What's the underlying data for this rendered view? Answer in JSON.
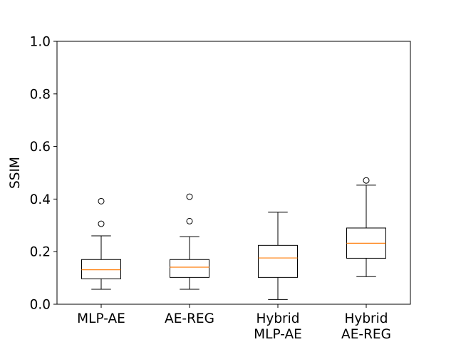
{
  "chart_data": {
    "type": "box",
    "title": "",
    "xlabel": "",
    "ylabel": "SSIM",
    "ylim": [
      0.0,
      1.0
    ],
    "yticks": [
      "0.0",
      "0.2",
      "0.4",
      "0.6",
      "0.8",
      "1.0"
    ],
    "grid": false,
    "categories": [
      [
        "MLP-AE"
      ],
      [
        "AE-REG"
      ],
      [
        "Hybrid",
        "MLP-AE"
      ],
      [
        "Hybrid",
        "AE-REG"
      ]
    ],
    "boxes": [
      {
        "whisker_low": 0.057,
        "q1": 0.097,
        "median": 0.131,
        "q3": 0.17,
        "whisker_high": 0.26,
        "outliers": [
          0.306,
          0.392
        ]
      },
      {
        "whisker_low": 0.057,
        "q1": 0.102,
        "median": 0.141,
        "q3": 0.17,
        "whisker_high": 0.257,
        "outliers": [
          0.316,
          0.409
        ]
      },
      {
        "whisker_low": 0.018,
        "q1": 0.102,
        "median": 0.176,
        "q3": 0.224,
        "whisker_high": 0.35,
        "outliers": []
      },
      {
        "whisker_low": 0.105,
        "q1": 0.175,
        "median": 0.232,
        "q3": 0.29,
        "whisker_high": 0.453,
        "outliers": [
          0.471
        ]
      }
    ],
    "colors": {
      "box": "#000000",
      "median": "#ff7f0e",
      "background": "#ffffff"
    }
  }
}
